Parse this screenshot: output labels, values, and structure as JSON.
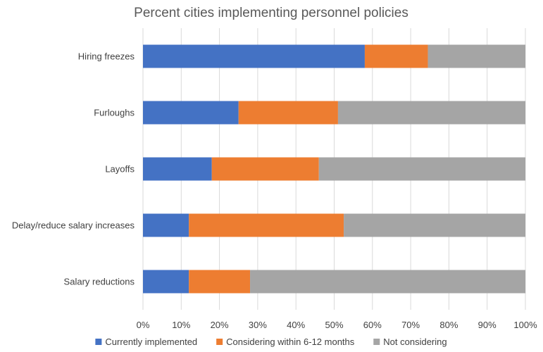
{
  "chart_data": {
    "type": "bar",
    "orientation": "horizontal",
    "stacked": true,
    "title": "Percent cities implementing personnel policies",
    "categories": [
      "Hiring freezes",
      "Furloughs",
      "Layoffs",
      "Delay/reduce salary increases",
      "Salary reductions"
    ],
    "series": [
      {
        "name": "Currently implemented",
        "color": "#4472c4",
        "values": [
          58,
          25,
          18,
          12,
          12
        ]
      },
      {
        "name": "Considering within 6-12 months",
        "color": "#ed7d31",
        "values": [
          16.5,
          26,
          28,
          40.5,
          16
        ]
      },
      {
        "name": "Not considering",
        "color": "#a5a5a5",
        "values": [
          25.5,
          49,
          54,
          47.5,
          72
        ]
      }
    ],
    "x_ticks": [
      "0%",
      "10%",
      "20%",
      "30%",
      "40%",
      "50%",
      "60%",
      "70%",
      "80%",
      "90%",
      "100%"
    ],
    "xlim": [
      0,
      100
    ],
    "grid": true,
    "legend_position": "bottom"
  }
}
